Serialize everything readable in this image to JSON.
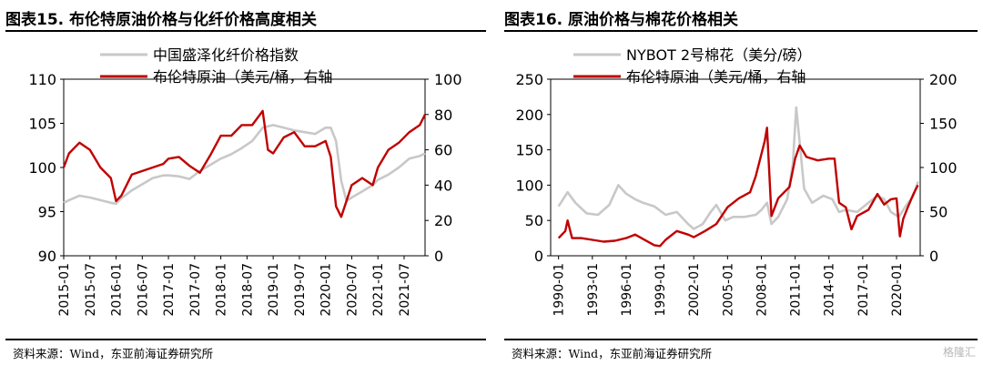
{
  "charts": [
    {
      "title": "图表15.  布伦特原油价格与化纤价格高度相关",
      "source": "资料来源：Wind，东亚前海证券研究所"
    },
    {
      "title": "图表16.  原油价格与棉花价格相关",
      "source": "资料来源：Wind，东亚前海证券研究所"
    }
  ],
  "watermark": "格隆汇",
  "chart_data": [
    {
      "type": "line",
      "x_ticks": [
        "2015-01",
        "2015-07",
        "2016-01",
        "2016-07",
        "2017-01",
        "2017-07",
        "2018-01",
        "2018-07",
        "2019-01",
        "2019-07",
        "2020-01",
        "2020-07",
        "2021-01",
        "2021-07"
      ],
      "y_left": {
        "range": [
          90,
          110
        ],
        "ticks": [
          "90",
          "95",
          "100",
          "105",
          "110"
        ]
      },
      "y_right": {
        "range": [
          0,
          100
        ],
        "ticks": [
          "0",
          "20",
          "40",
          "60",
          "80",
          "100"
        ]
      },
      "legend_position": "top-left",
      "series": [
        {
          "name": "中国盛泽化纤价格指数",
          "color": "#c8c8c8",
          "axis": "left",
          "x": [
            2015.0,
            2015.1,
            2015.3,
            2015.5,
            2015.7,
            2015.9,
            2016.0,
            2016.1,
            2016.3,
            2016.5,
            2016.7,
            2016.9,
            2017.0,
            2017.2,
            2017.4,
            2017.6,
            2017.8,
            2018.0,
            2018.2,
            2018.4,
            2018.6,
            2018.8,
            2019.0,
            2019.2,
            2019.4,
            2019.6,
            2019.8,
            2020.0,
            2020.1,
            2020.2,
            2020.3,
            2020.4,
            2020.5,
            2020.7,
            2020.9,
            2021.0,
            2021.2,
            2021.4,
            2021.6,
            2021.8,
            2021.9
          ],
          "values": [
            96.0,
            96.3,
            96.8,
            96.6,
            96.3,
            96.0,
            95.9,
            96.5,
            97.4,
            98.1,
            98.8,
            99.1,
            99.1,
            99.0,
            98.7,
            99.6,
            100.3,
            101.0,
            101.5,
            102.2,
            103.0,
            104.5,
            104.8,
            104.5,
            104.2,
            104.0,
            103.8,
            104.5,
            104.5,
            103.0,
            98.5,
            96.2,
            96.6,
            97.3,
            98.0,
            98.6,
            99.2,
            100.0,
            101.0,
            101.3,
            101.6
          ]
        },
        {
          "name": "布伦特原油（美元/桶，右轴",
          "color": "#c00000",
          "axis": "right",
          "x": [
            2015.0,
            2015.1,
            2015.3,
            2015.5,
            2015.7,
            2015.9,
            2016.0,
            2016.1,
            2016.3,
            2016.5,
            2016.7,
            2016.9,
            2017.0,
            2017.2,
            2017.4,
            2017.6,
            2017.8,
            2018.0,
            2018.2,
            2018.4,
            2018.6,
            2018.8,
            2018.9,
            2019.0,
            2019.2,
            2019.4,
            2019.6,
            2019.8,
            2020.0,
            2020.1,
            2020.2,
            2020.3,
            2020.5,
            2020.7,
            2020.9,
            2021.0,
            2021.2,
            2021.4,
            2021.6,
            2021.8,
            2021.9
          ],
          "values": [
            50,
            58,
            64,
            60,
            50,
            44,
            31,
            34,
            46,
            48,
            50,
            52,
            55,
            56,
            51,
            47,
            57,
            68,
            68,
            74,
            74,
            82,
            60,
            58,
            67,
            70,
            62,
            62,
            65,
            56,
            28,
            22,
            40,
            44,
            40,
            50,
            60,
            64,
            70,
            74,
            80
          ]
        }
      ]
    },
    {
      "type": "line",
      "x_ticks": [
        "1990-01",
        "1993-01",
        "1996-01",
        "1999-01",
        "2002-01",
        "2005-01",
        "2008-01",
        "2011-01",
        "2014-01",
        "2017-01",
        "2020-01"
      ],
      "y_left": {
        "range": [
          0,
          250
        ],
        "ticks": [
          "0",
          "50",
          "100",
          "150",
          "200",
          "250"
        ]
      },
      "y_right": {
        "range": [
          0,
          200
        ],
        "ticks": [
          "0",
          "50",
          "100",
          "150",
          "200"
        ]
      },
      "legend_position": "top-left",
      "series": [
        {
          "name": "NYBOT 2号棉花（美分/磅）",
          "color": "#c8c8c8",
          "axis": "left",
          "x": [
            1990.0,
            1990.8,
            1991.5,
            1992.5,
            1993.5,
            1994.5,
            1995.3,
            1996.0,
            1996.8,
            1997.5,
            1998.5,
            1999.5,
            2000.5,
            2001.5,
            2002.0,
            2002.8,
            2003.5,
            2004.0,
            2004.8,
            2005.5,
            2006.5,
            2007.5,
            2008.0,
            2008.5,
            2008.9,
            2009.5,
            2010.3,
            2010.8,
            2011.1,
            2011.4,
            2011.8,
            2012.5,
            2013.5,
            2014.3,
            2014.9,
            2015.5,
            2016.5,
            2017.5,
            2018.3,
            2018.9,
            2019.5,
            2020.2,
            2020.8,
            2021.5,
            2021.9
          ],
          "values": [
            70,
            90,
            75,
            60,
            58,
            72,
            100,
            88,
            80,
            75,
            70,
            58,
            62,
            45,
            38,
            45,
            62,
            72,
            50,
            55,
            55,
            58,
            65,
            75,
            45,
            55,
            80,
            130,
            210,
            160,
            95,
            75,
            85,
            80,
            62,
            65,
            62,
            75,
            85,
            80,
            62,
            55,
            70,
            85,
            105
          ]
        },
        {
          "name": "布伦特原油（美元/桶，右轴",
          "color": "#c00000",
          "axis": "right",
          "x": [
            1990.0,
            1990.6,
            1990.8,
            1991.2,
            1992.0,
            1993.0,
            1994.0,
            1995.0,
            1996.0,
            1996.8,
            1997.5,
            1998.5,
            1999.0,
            1999.5,
            2000.5,
            2001.5,
            2002.0,
            2003.0,
            2004.0,
            2005.0,
            2006.0,
            2007.0,
            2007.5,
            2008.3,
            2008.5,
            2008.9,
            2009.5,
            2010.5,
            2011.0,
            2011.4,
            2012.0,
            2013.0,
            2014.0,
            2014.5,
            2014.9,
            2015.5,
            2016.0,
            2016.5,
            2017.5,
            2018.3,
            2018.9,
            2019.5,
            2020.0,
            2020.3,
            2020.6,
            2021.0,
            2021.5,
            2021.9
          ],
          "values": [
            20,
            28,
            40,
            20,
            20,
            18,
            16,
            17,
            20,
            24,
            19,
            12,
            11,
            18,
            28,
            24,
            21,
            28,
            36,
            55,
            65,
            72,
            90,
            130,
            145,
            45,
            65,
            78,
            110,
            125,
            112,
            108,
            110,
            110,
            60,
            55,
            30,
            45,
            52,
            70,
            58,
            64,
            65,
            22,
            42,
            55,
            70,
            80
          ]
        }
      ]
    }
  ]
}
